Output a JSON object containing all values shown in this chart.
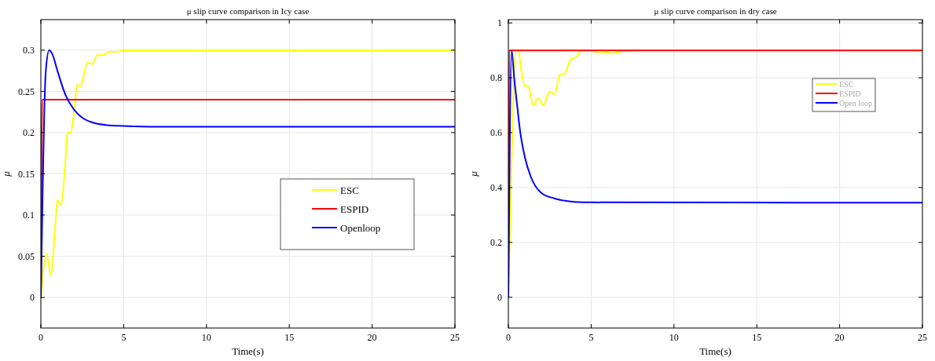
{
  "chart_data": [
    {
      "type": "line",
      "title": "μ slip curve comparison in Icy case",
      "xlabel": "Time(s)",
      "ylabel": "μ",
      "xlim": [
        0,
        25
      ],
      "ylim": [
        -0.037,
        0.337
      ],
      "xticks": [
        0,
        5,
        10,
        15,
        20,
        25
      ],
      "yticks": [
        0,
        0.05,
        0.1,
        0.15,
        0.2,
        0.25,
        0.3
      ],
      "grid": true,
      "legend": "right",
      "series": [
        {
          "name": "ESC",
          "color": "#ffff00",
          "x": [
            0,
            0.35,
            0.6,
            0.9,
            1.0,
            1.2,
            1.5,
            1.6,
            1.8,
            2.0,
            2.2,
            2.4,
            2.6,
            2.8,
            3.1,
            3.4,
            3.8,
            4.1,
            4.6,
            5,
            6,
            25
          ],
          "values": [
            0,
            0.053,
            0.027,
            0.095,
            0.118,
            0.112,
            0.17,
            0.2,
            0.2,
            0.225,
            0.258,
            0.256,
            0.27,
            0.285,
            0.283,
            0.294,
            0.294,
            0.298,
            0.298,
            0.3,
            0.3,
            0.3
          ]
        },
        {
          "name": "ESPID",
          "color": "#ff0000",
          "x": [
            0,
            0.08,
            25
          ],
          "values": [
            0,
            0.24,
            0.24
          ]
        },
        {
          "name": "Openloop",
          "color": "#0000ff",
          "x": [
            0,
            0.1,
            0.2,
            0.3,
            0.5,
            0.7,
            1,
            1.5,
            2,
            2.5,
            3,
            4,
            5,
            7,
            25
          ],
          "values": [
            0,
            0.12,
            0.22,
            0.275,
            0.3,
            0.295,
            0.275,
            0.245,
            0.228,
            0.218,
            0.213,
            0.209,
            0.208,
            0.207,
            0.207
          ]
        }
      ]
    },
    {
      "type": "line",
      "title": "μ slip curve comparison in dry case",
      "xlabel": "Time(s)",
      "ylabel": "μ",
      "xlim": [
        0,
        25
      ],
      "ylim": [
        -0.112,
        1.012
      ],
      "xticks": [
        0,
        5,
        10,
        15,
        20,
        25
      ],
      "yticks": [
        0,
        0.2,
        0.4,
        0.6,
        0.8,
        1
      ],
      "grid": true,
      "legend": "top right",
      "series": [
        {
          "name": "ESC",
          "color": "#ffff00",
          "x": [
            0,
            0.2,
            0.45,
            0.6,
            0.8,
            1.0,
            1.2,
            1.5,
            1.8,
            2.1,
            2.5,
            2.8,
            3.1,
            3.4,
            3.8,
            4.1,
            4.4,
            5,
            5.5,
            6,
            6.2,
            6.8,
            7.5
          ],
          "values": [
            0,
            0.5,
            0.9,
            0.9,
            0.82,
            0.77,
            0.77,
            0.7,
            0.725,
            0.7,
            0.75,
            0.74,
            0.81,
            0.815,
            0.87,
            0.875,
            0.9,
            0.9,
            0.89,
            0.893,
            0.888,
            0.896,
            0.898
          ]
        },
        {
          "name": "ESPID",
          "color": "#ff0000",
          "x": [
            0,
            0.05,
            25
          ],
          "values": [
            0,
            0.9,
            0.9
          ]
        },
        {
          "name": "Open loop",
          "color": "#0000ff",
          "x": [
            0,
            0.2,
            0.35,
            0.53,
            0.7,
            1.0,
            1.35,
            2,
            2.8,
            4,
            5,
            25
          ],
          "values": [
            0,
            0.9,
            0.8,
            0.7,
            0.61,
            0.51,
            0.44,
            0.38,
            0.36,
            0.348,
            0.346,
            0.345
          ]
        }
      ]
    }
  ]
}
